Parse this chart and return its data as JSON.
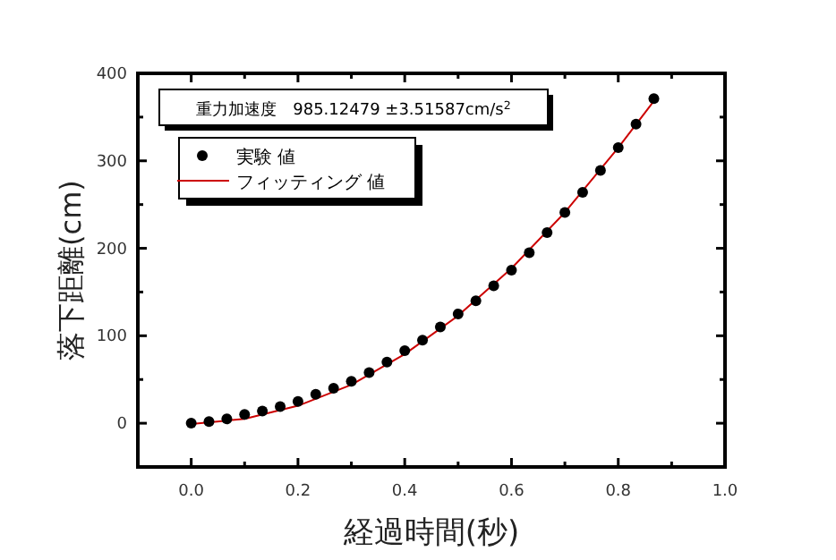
{
  "chart_data": {
    "type": "scatter",
    "xlabel": "経過時間(秒)",
    "ylabel": "落下距離(cm)",
    "annotations": [
      "重力加速度　985.12479 ±3.51587cm/s$^{2}$"
    ],
    "xlim": [
      -0.1,
      1.0
    ],
    "ylim": [
      -50,
      400
    ],
    "xticks": [
      {
        "value": 0,
        "label": "0.0"
      },
      {
        "value": 0.1,
        "label": null
      },
      {
        "value": 0.2,
        "label": "0.2"
      },
      {
        "value": 0.3,
        "label": null
      },
      {
        "value": 0.4,
        "label": "0.4"
      },
      {
        "value": 0.5,
        "label": null
      },
      {
        "value": 0.6,
        "label": "0.6"
      },
      {
        "value": 0.7,
        "label": null
      },
      {
        "value": 0.8,
        "label": "0.8"
      },
      {
        "value": 0.9,
        "label": null
      },
      {
        "value": 1.0,
        "label": "1.0"
      }
    ],
    "yticks": [
      0,
      {
        "value": 50,
        "label": null
      },
      100,
      {
        "value": 150,
        "label": null
      },
      200,
      {
        "value": 250,
        "label": null
      },
      300,
      {
        "value": 350,
        "label": null
      },
      400
    ],
    "legend": "top left",
    "grid": false,
    "series": [
      {
        "name": "実験 値",
        "marker": "circle",
        "color": "#000000",
        "x": [
          0,
          0.0333,
          0.0667,
          0.1,
          0.1333,
          0.1667,
          0.2,
          0.2333,
          0.2667,
          0.3,
          0.3333,
          0.3667,
          0.4,
          0.4333,
          0.4667,
          0.5,
          0.5333,
          0.5667,
          0.6,
          0.6333,
          0.6667,
          0.7,
          0.7333,
          0.7667,
          0.8,
          0.8333,
          0.8667
        ],
        "values": [
          0,
          2,
          5,
          10,
          14,
          19,
          25,
          33,
          40,
          48,
          58,
          70,
          83,
          95,
          110,
          125,
          140,
          157,
          175,
          195,
          218,
          241,
          264,
          289,
          315,
          342,
          371
        ]
      },
      {
        "name": "フィッティング 値",
        "type": "line",
        "marker": "none",
        "line_style": "solid",
        "color": "#cc0000",
        "x": [
          0,
          0.1,
          0.2,
          0.3,
          0.4,
          0.5,
          0.6,
          0.7,
          0.8,
          0.87
        ],
        "values": [
          -1,
          5,
          20,
          44,
          79,
          123,
          177,
          241,
          315,
          371
        ]
      }
    ]
  }
}
